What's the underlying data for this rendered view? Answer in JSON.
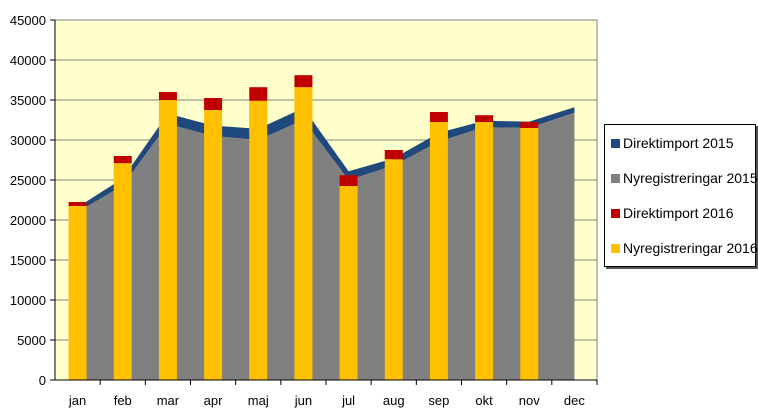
{
  "chart_data": {
    "type": "bar+area",
    "categories": [
      "jan",
      "feb",
      "mar",
      "apr",
      "maj",
      "jun",
      "jul",
      "aug",
      "sep",
      "okt",
      "nov",
      "dec"
    ],
    "ylim": [
      0,
      45000
    ],
    "yticks": [
      0,
      5000,
      10000,
      15000,
      20000,
      25000,
      30000,
      35000,
      40000,
      45000
    ],
    "grid": true,
    "legend_position": "right",
    "series": [
      {
        "name": "Direktimport 2015",
        "kind": "stacked-area",
        "color": "#1F497D",
        "values": [
          600,
          900,
          1300,
          1300,
          1400,
          1500,
          1100,
          900,
          1100,
          800,
          800,
          700
        ]
      },
      {
        "name": "Nyregistreringar 2015",
        "kind": "stacked-area",
        "color": "#808080",
        "values": [
          21000,
          24300,
          32000,
          30500,
          30000,
          32500,
          25000,
          26800,
          29800,
          31600,
          31500,
          33400
        ]
      },
      {
        "name": "Direktimport 2016",
        "kind": "stacked-bar",
        "color": "#C00000",
        "values": [
          500,
          900,
          1000,
          1500,
          1700,
          1500,
          1350,
          1150,
          1250,
          850,
          750,
          null
        ]
      },
      {
        "name": "Nyregistreringar 2016",
        "kind": "stacked-bar",
        "color": "#FFC000",
        "values": [
          21750,
          27100,
          35000,
          33750,
          34900,
          36600,
          24250,
          27600,
          32250,
          32250,
          31500,
          null
        ]
      }
    ]
  }
}
